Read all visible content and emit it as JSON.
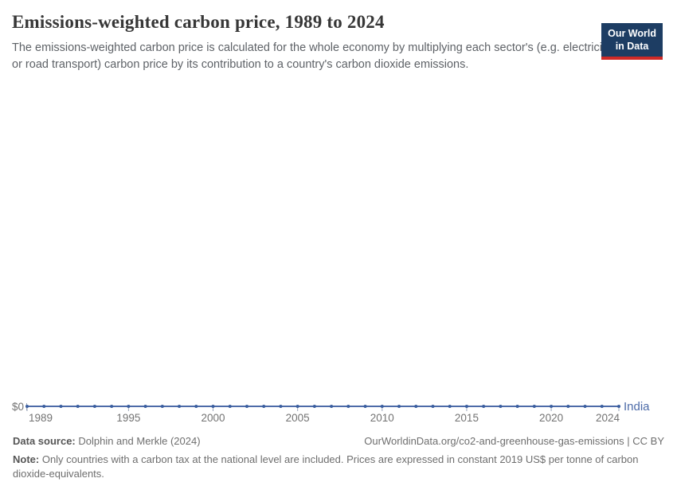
{
  "header": {
    "title": "Emissions-weighted carbon price, 1989 to 2024",
    "subtitle": "The emissions-weighted carbon price is calculated for the whole economy by multiplying each sector's (e.g. electricity, or road transport) carbon price by its contribution to a country's carbon dioxide emissions.",
    "logo": {
      "line1": "Our World",
      "line2": "in Data"
    }
  },
  "chart_data": {
    "type": "line",
    "title": "Emissions-weighted carbon price, 1989 to 2024",
    "x": [
      1989,
      1990,
      1991,
      1992,
      1993,
      1994,
      1995,
      1996,
      1997,
      1998,
      1999,
      2000,
      2001,
      2002,
      2003,
      2004,
      2005,
      2006,
      2007,
      2008,
      2009,
      2010,
      2011,
      2012,
      2013,
      2014,
      2015,
      2016,
      2017,
      2018,
      2019,
      2020,
      2021,
      2022,
      2023,
      2024
    ],
    "series": [
      {
        "name": "India",
        "values": [
          0,
          0,
          0,
          0,
          0,
          0,
          0,
          0,
          0,
          0,
          0,
          0,
          0,
          0,
          0,
          0,
          0,
          0,
          0,
          0,
          0,
          0,
          0,
          0,
          0,
          0,
          0,
          0,
          0,
          0,
          0,
          0,
          0,
          0,
          0,
          0
        ]
      }
    ],
    "x_tick_years": [
      1989,
      1995,
      2000,
      2005,
      2010,
      2015,
      2020,
      2024
    ],
    "y_tick_labels": [
      "$0"
    ],
    "xlabel": "",
    "ylabel": "",
    "ylim": [
      0,
      0
    ],
    "grid": false,
    "legend_position": "line-end-label",
    "unit": "constant 2019 US$ per tonne of CO2-equivalents"
  },
  "footer": {
    "datasource_label": "Data source:",
    "datasource_value": " Dolphin and Merkle (2024)",
    "citation": "OurWorldinData.org/co2-and-greenhouse-gas-emissions | CC BY",
    "note_label": "Note:",
    "note_value": " Only countries with a carbon tax at the national level are included. Prices are expressed in constant 2019 US$ per tonne of carbon dioxide-equivalents."
  },
  "colors": {
    "series_line": "#4d6ba8",
    "series_marker": "#3a5e9f",
    "axis_tick": "#9aa4b8",
    "logo_background": "#1d3d63",
    "logo_underline": "#cf2a27"
  }
}
